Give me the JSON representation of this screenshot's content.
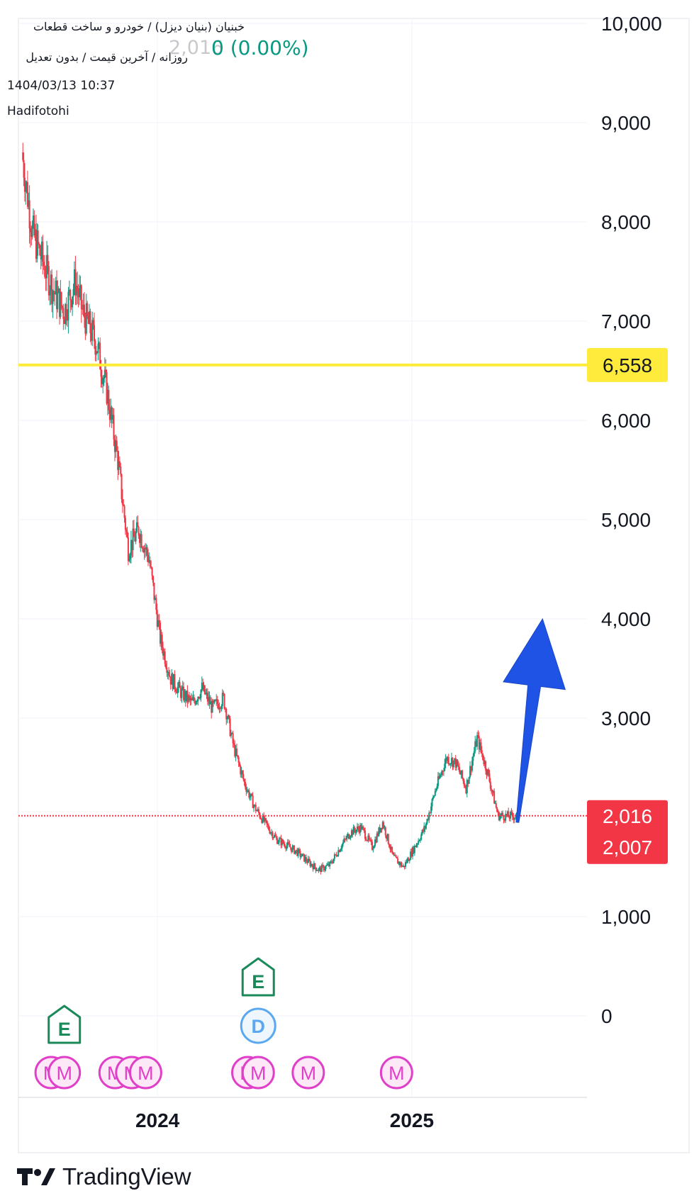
{
  "header": {
    "symbol_line": "خبنیان (بنیان دیزل) / خودرو و ساخت قطعات",
    "settings_line": "روزانه / آخرین قیمت / بدون تعدیل",
    "quote_value": "2,016",
    "quote_change": "0 (0.00%)",
    "datetime": "1404/03/13 10:37",
    "author": "Hadifotohi"
  },
  "brand": {
    "name": "TradingView"
  },
  "colors": {
    "up": "#089981",
    "down": "#f23645",
    "resistance_line": "#ffeb3b",
    "price_line": "#f23645",
    "arrow": "#1e53e5",
    "marker_m": "#e040c8",
    "marker_e": "#1b8a5a",
    "marker_d": "#5aa9f0"
  },
  "chart_data": {
    "type": "line",
    "style": "candlestick",
    "title": "",
    "xlabel": "",
    "ylabel": "",
    "y_ticks": [
      0,
      1000,
      2000,
      3000,
      4000,
      5000,
      6000,
      7000,
      8000,
      9000,
      10000
    ],
    "y_tick_labels": [
      "0",
      "1,000",
      "",
      "3,000",
      "4,000",
      "5,000",
      "6,000",
      "7,000",
      "8,000",
      "9,000",
      "10,000"
    ],
    "ylim": [
      -800,
      10050
    ],
    "x_ticks": [
      "2024",
      "2025"
    ],
    "grid": true,
    "series": [
      {
        "x": [
          "2023-06-20",
          "2023-07-05",
          "2023-07-20",
          "2023-08-05",
          "2023-08-20",
          "2023-09-05",
          "2023-09-15",
          "2023-10-05",
          "2023-10-20",
          "2023-11-05",
          "2023-11-20",
          "2023-12-05",
          "2023-12-20",
          "2024-01-05",
          "2024-01-20",
          "2024-02-05",
          "2024-02-20",
          "2024-03-05",
          "2024-03-20",
          "2024-04-05",
          "2024-04-20",
          "2024-05-05",
          "2024-05-20",
          "2024-06-05",
          "2024-06-20",
          "2024-07-05",
          "2024-07-20",
          "2024-08-05",
          "2024-08-20",
          "2024-09-05",
          "2024-09-20",
          "2024-10-05",
          "2024-10-20",
          "2024-11-05",
          "2024-11-20",
          "2024-12-05",
          "2024-12-20",
          "2025-01-05",
          "2025-01-20",
          "2025-02-05",
          "2025-02-20",
          "2025-03-05",
          "2025-03-20",
          "2025-04-05",
          "2025-04-20",
          "2025-05-05",
          "2025-05-20",
          "2025-06-02"
        ],
        "values": [
          8700,
          7900,
          7600,
          7300,
          7100,
          7400,
          7100,
          6780,
          6300,
          5600,
          4700,
          4900,
          4600,
          3800,
          3400,
          3250,
          3150,
          3300,
          3100,
          3200,
          2700,
          2350,
          2100,
          1930,
          1780,
          1720,
          1650,
          1550,
          1470,
          1520,
          1700,
          1850,
          1900,
          1700,
          1950,
          1600,
          1500,
          1700,
          1900,
          2300,
          2600,
          2550,
          2300,
          2800,
          2450,
          2020,
          2010,
          2016
        ]
      }
    ],
    "levels": [
      {
        "value": 6558,
        "label": "6,558"
      },
      {
        "value": 2016,
        "label": "2,016"
      },
      {
        "value": 2007,
        "label": "2,007"
      }
    ],
    "forecast_arrow": {
      "from": {
        "x": "2025-06-02",
        "y": 1950
      },
      "to": {
        "x": "2025-07-08",
        "y": 4000
      }
    },
    "event_markers": [
      {
        "label": "M",
        "x": "2023-08-01",
        "row": "M"
      },
      {
        "label": "M",
        "x": "2023-08-20",
        "row": "M"
      },
      {
        "label": "E",
        "x": "2023-08-20",
        "row": "E"
      },
      {
        "label": "M",
        "x": "2023-11-01",
        "row": "M"
      },
      {
        "label": "M",
        "x": "2023-11-25",
        "row": "M"
      },
      {
        "label": "M",
        "x": "2023-12-15",
        "row": "M"
      },
      {
        "label": "M",
        "x": "2024-05-10",
        "row": "M"
      },
      {
        "label": "M",
        "x": "2024-05-25",
        "row": "M"
      },
      {
        "label": "E",
        "x": "2024-05-25",
        "row": "E"
      },
      {
        "label": "D",
        "x": "2024-05-25",
        "row": "D"
      },
      {
        "label": "M",
        "x": "2024-08-05",
        "row": "M"
      },
      {
        "label": "M",
        "x": "2024-12-10",
        "row": "M"
      }
    ]
  }
}
